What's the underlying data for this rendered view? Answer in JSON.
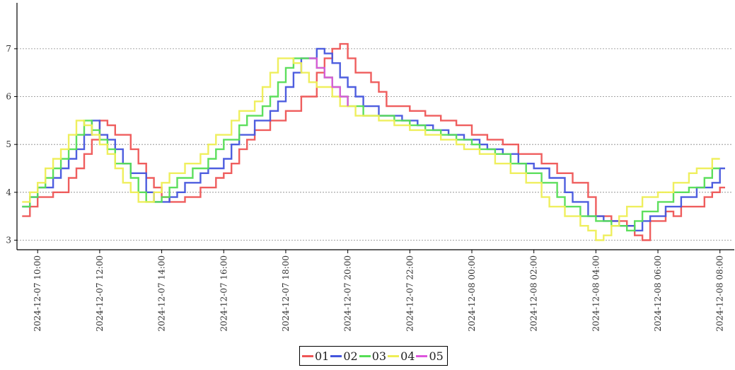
{
  "chart_data": {
    "type": "line",
    "step": true,
    "grid": {
      "horizontal": true,
      "style": "dotted"
    },
    "legend_position": "bottom-center",
    "x_ticks": [
      "2024-12-07 10:00",
      "2024-12-07 12:00",
      "2024-12-07 14:00",
      "2024-12-07 16:00",
      "2024-12-07 18:00",
      "2024-12-07 20:00",
      "2024-12-07 22:00",
      "2024-12-08 00:00",
      "2024-12-08 02:00",
      "2024-12-08 04:00",
      "2024-12-08 06:00",
      "2024-12-08 08:00"
    ],
    "xlim": [
      "2024-12-07 09:20",
      "2024-12-08 08:25"
    ],
    "ylim": [
      2.8,
      7.9
    ],
    "y_ticks": [
      3,
      4,
      5,
      6,
      7
    ],
    "series": [
      {
        "name": "01",
        "color": "#ee5555",
        "points": [
          [
            "2024-12-07 09:30",
            3.5
          ],
          [
            "2024-12-07 09:45",
            3.7
          ],
          [
            "2024-12-07 10:00",
            3.9
          ],
          [
            "2024-12-07 10:30",
            4.0
          ],
          [
            "2024-12-07 11:00",
            4.3
          ],
          [
            "2024-12-07 11:15",
            4.5
          ],
          [
            "2024-12-07 11:30",
            4.8
          ],
          [
            "2024-12-07 11:45",
            5.1
          ],
          [
            "2024-12-07 12:00",
            5.5
          ],
          [
            "2024-12-07 12:15",
            5.4
          ],
          [
            "2024-12-07 12:30",
            5.2
          ],
          [
            "2024-12-07 13:00",
            4.9
          ],
          [
            "2024-12-07 13:15",
            4.6
          ],
          [
            "2024-12-07 13:30",
            4.3
          ],
          [
            "2024-12-07 13:45",
            4.1
          ],
          [
            "2024-12-07 14:00",
            3.9
          ],
          [
            "2024-12-07 14:15",
            3.8
          ],
          [
            "2024-12-07 14:45",
            3.9
          ],
          [
            "2024-12-07 15:15",
            4.1
          ],
          [
            "2024-12-07 15:45",
            4.3
          ],
          [
            "2024-12-07 16:00",
            4.4
          ],
          [
            "2024-12-07 16:15",
            4.6
          ],
          [
            "2024-12-07 16:30",
            4.9
          ],
          [
            "2024-12-07 16:45",
            5.1
          ],
          [
            "2024-12-07 17:00",
            5.3
          ],
          [
            "2024-12-07 17:30",
            5.5
          ],
          [
            "2024-12-07 18:00",
            5.7
          ],
          [
            "2024-12-07 18:30",
            6.0
          ],
          [
            "2024-12-07 19:00",
            6.5
          ],
          [
            "2024-12-07 19:15",
            6.8
          ],
          [
            "2024-12-07 19:30",
            7.0
          ],
          [
            "2024-12-07 19:45",
            7.1
          ],
          [
            "2024-12-07 20:00",
            6.8
          ],
          [
            "2024-12-07 20:15",
            6.5
          ],
          [
            "2024-12-07 20:45",
            6.3
          ],
          [
            "2024-12-07 21:00",
            6.1
          ],
          [
            "2024-12-07 21:15",
            5.8
          ],
          [
            "2024-12-07 22:00",
            5.7
          ],
          [
            "2024-12-07 22:30",
            5.6
          ],
          [
            "2024-12-07 23:00",
            5.5
          ],
          [
            "2024-12-07 23:30",
            5.4
          ],
          [
            "2024-12-08 00:00",
            5.2
          ],
          [
            "2024-12-08 00:30",
            5.1
          ],
          [
            "2024-12-08 01:00",
            5.0
          ],
          [
            "2024-12-08 01:30",
            4.8
          ],
          [
            "2024-12-08 02:15",
            4.6
          ],
          [
            "2024-12-08 02:45",
            4.4
          ],
          [
            "2024-12-08 03:15",
            4.2
          ],
          [
            "2024-12-08 03:45",
            3.9
          ],
          [
            "2024-12-08 04:00",
            3.5
          ],
          [
            "2024-12-08 04:30",
            3.4
          ],
          [
            "2024-12-08 05:00",
            3.3
          ],
          [
            "2024-12-08 05:15",
            3.1
          ],
          [
            "2024-12-08 05:30",
            3.0
          ],
          [
            "2024-12-08 05:45",
            3.4
          ],
          [
            "2024-12-08 06:15",
            3.6
          ],
          [
            "2024-12-08 06:30",
            3.5
          ],
          [
            "2024-12-08 06:45",
            3.7
          ],
          [
            "2024-12-08 07:30",
            3.9
          ],
          [
            "2024-12-08 07:45",
            4.0
          ],
          [
            "2024-12-08 08:00",
            4.1
          ],
          [
            "2024-12-08 08:10",
            4.1
          ]
        ]
      },
      {
        "name": "02",
        "color": "#4455dd",
        "points": [
          [
            "2024-12-07 09:30",
            3.7
          ],
          [
            "2024-12-07 09:45",
            3.9
          ],
          [
            "2024-12-07 10:00",
            4.1
          ],
          [
            "2024-12-07 10:30",
            4.3
          ],
          [
            "2024-12-07 10:45",
            4.5
          ],
          [
            "2024-12-07 11:00",
            4.7
          ],
          [
            "2024-12-07 11:15",
            4.9
          ],
          [
            "2024-12-07 11:30",
            5.2
          ],
          [
            "2024-12-07 11:45",
            5.5
          ],
          [
            "2024-12-07 12:00",
            5.2
          ],
          [
            "2024-12-07 12:15",
            5.1
          ],
          [
            "2024-12-07 12:30",
            4.9
          ],
          [
            "2024-12-07 12:45",
            4.6
          ],
          [
            "2024-12-07 13:00",
            4.4
          ],
          [
            "2024-12-07 13:30",
            4.0
          ],
          [
            "2024-12-07 13:45",
            3.8
          ],
          [
            "2024-12-07 14:15",
            3.9
          ],
          [
            "2024-12-07 14:30",
            4.0
          ],
          [
            "2024-12-07 14:45",
            4.2
          ],
          [
            "2024-12-07 15:15",
            4.4
          ],
          [
            "2024-12-07 15:30",
            4.5
          ],
          [
            "2024-12-07 16:00",
            4.7
          ],
          [
            "2024-12-07 16:15",
            5.0
          ],
          [
            "2024-12-07 16:30",
            5.2
          ],
          [
            "2024-12-07 17:00",
            5.5
          ],
          [
            "2024-12-07 17:30",
            5.7
          ],
          [
            "2024-12-07 17:45",
            5.9
          ],
          [
            "2024-12-07 18:00",
            6.2
          ],
          [
            "2024-12-07 18:15",
            6.5
          ],
          [
            "2024-12-07 18:30",
            6.8
          ],
          [
            "2024-12-07 19:00",
            7.0
          ],
          [
            "2024-12-07 19:15",
            6.9
          ],
          [
            "2024-12-07 19:30",
            6.7
          ],
          [
            "2024-12-07 19:45",
            6.4
          ],
          [
            "2024-12-07 20:00",
            6.2
          ],
          [
            "2024-12-07 20:15",
            6.0
          ],
          [
            "2024-12-07 20:30",
            5.8
          ],
          [
            "2024-12-07 21:00",
            5.6
          ],
          [
            "2024-12-07 21:45",
            5.5
          ],
          [
            "2024-12-07 22:15",
            5.4
          ],
          [
            "2024-12-07 22:45",
            5.3
          ],
          [
            "2024-12-07 23:15",
            5.2
          ],
          [
            "2024-12-07 23:45",
            5.1
          ],
          [
            "2024-12-08 00:15",
            5.0
          ],
          [
            "2024-12-08 00:30",
            4.9
          ],
          [
            "2024-12-08 01:00",
            4.8
          ],
          [
            "2024-12-08 01:30",
            4.6
          ],
          [
            "2024-12-08 02:00",
            4.5
          ],
          [
            "2024-12-08 02:30",
            4.3
          ],
          [
            "2024-12-08 03:00",
            4.0
          ],
          [
            "2024-12-08 03:15",
            3.8
          ],
          [
            "2024-12-08 03:45",
            3.5
          ],
          [
            "2024-12-08 04:15",
            3.4
          ],
          [
            "2024-12-08 04:45",
            3.3
          ],
          [
            "2024-12-08 05:15",
            3.2
          ],
          [
            "2024-12-08 05:30",
            3.4
          ],
          [
            "2024-12-08 05:45",
            3.5
          ],
          [
            "2024-12-08 06:15",
            3.7
          ],
          [
            "2024-12-08 06:45",
            3.9
          ],
          [
            "2024-12-08 07:15",
            4.1
          ],
          [
            "2024-12-08 07:45",
            4.2
          ],
          [
            "2024-12-08 08:00",
            4.5
          ],
          [
            "2024-12-08 08:10",
            4.5
          ]
        ]
      },
      {
        "name": "03",
        "color": "#55dd55",
        "points": [
          [
            "2024-12-07 09:30",
            3.7
          ],
          [
            "2024-12-07 09:45",
            3.9
          ],
          [
            "2024-12-07 10:00",
            4.1
          ],
          [
            "2024-12-07 10:15",
            4.3
          ],
          [
            "2024-12-07 10:30",
            4.5
          ],
          [
            "2024-12-07 10:45",
            4.7
          ],
          [
            "2024-12-07 11:00",
            4.9
          ],
          [
            "2024-12-07 11:15",
            5.2
          ],
          [
            "2024-12-07 11:30",
            5.5
          ],
          [
            "2024-12-07 11:45",
            5.3
          ],
          [
            "2024-12-07 12:00",
            5.1
          ],
          [
            "2024-12-07 12:15",
            4.9
          ],
          [
            "2024-12-07 12:30",
            4.6
          ],
          [
            "2024-12-07 13:00",
            4.3
          ],
          [
            "2024-12-07 13:15",
            4.0
          ],
          [
            "2024-12-07 13:30",
            3.8
          ],
          [
            "2024-12-07 14:00",
            3.9
          ],
          [
            "2024-12-07 14:15",
            4.1
          ],
          [
            "2024-12-07 14:30",
            4.3
          ],
          [
            "2024-12-07 15:00",
            4.5
          ],
          [
            "2024-12-07 15:30",
            4.7
          ],
          [
            "2024-12-07 15:45",
            4.9
          ],
          [
            "2024-12-07 16:00",
            5.1
          ],
          [
            "2024-12-07 16:30",
            5.4
          ],
          [
            "2024-12-07 16:45",
            5.6
          ],
          [
            "2024-12-07 17:15",
            5.8
          ],
          [
            "2024-12-07 17:30",
            6.0
          ],
          [
            "2024-12-07 17:45",
            6.3
          ],
          [
            "2024-12-07 18:00",
            6.6
          ],
          [
            "2024-12-07 18:15",
            6.8
          ],
          [
            "2024-12-07 18:45",
            6.8
          ],
          [
            "2024-12-07 19:00",
            6.6
          ],
          [
            "2024-12-07 19:15",
            6.4
          ],
          [
            "2024-12-07 19:30",
            6.2
          ],
          [
            "2024-12-07 19:45",
            6.0
          ],
          [
            "2024-12-07 20:00",
            5.8
          ],
          [
            "2024-12-07 20:30",
            5.6
          ],
          [
            "2024-12-07 21:30",
            5.5
          ],
          [
            "2024-12-07 22:00",
            5.4
          ],
          [
            "2024-12-07 22:30",
            5.3
          ],
          [
            "2024-12-07 23:00",
            5.2
          ],
          [
            "2024-12-07 23:30",
            5.1
          ],
          [
            "2024-12-08 00:00",
            5.0
          ],
          [
            "2024-12-08 00:15",
            4.9
          ],
          [
            "2024-12-08 00:45",
            4.8
          ],
          [
            "2024-12-08 01:15",
            4.6
          ],
          [
            "2024-12-08 01:45",
            4.4
          ],
          [
            "2024-12-08 02:15",
            4.2
          ],
          [
            "2024-12-08 02:45",
            3.9
          ],
          [
            "2024-12-08 03:00",
            3.7
          ],
          [
            "2024-12-08 03:30",
            3.5
          ],
          [
            "2024-12-08 04:00",
            3.4
          ],
          [
            "2024-12-08 04:30",
            3.3
          ],
          [
            "2024-12-08 05:00",
            3.2
          ],
          [
            "2024-12-08 05:15",
            3.4
          ],
          [
            "2024-12-08 05:30",
            3.6
          ],
          [
            "2024-12-08 06:00",
            3.8
          ],
          [
            "2024-12-08 06:30",
            4.0
          ],
          [
            "2024-12-08 07:00",
            4.1
          ],
          [
            "2024-12-08 07:30",
            4.3
          ],
          [
            "2024-12-08 07:45",
            4.5
          ],
          [
            "2024-12-08 08:00",
            4.5
          ]
        ]
      },
      {
        "name": "04",
        "color": "#eeee55",
        "points": [
          [
            "2024-12-07 09:30",
            3.8
          ],
          [
            "2024-12-07 09:45",
            4.0
          ],
          [
            "2024-12-07 10:00",
            4.2
          ],
          [
            "2024-12-07 10:15",
            4.5
          ],
          [
            "2024-12-07 10:30",
            4.7
          ],
          [
            "2024-12-07 10:45",
            4.9
          ],
          [
            "2024-12-07 11:00",
            5.2
          ],
          [
            "2024-12-07 11:15",
            5.5
          ],
          [
            "2024-12-07 11:30",
            5.4
          ],
          [
            "2024-12-07 11:45",
            5.2
          ],
          [
            "2024-12-07 12:00",
            5.0
          ],
          [
            "2024-12-07 12:15",
            4.8
          ],
          [
            "2024-12-07 12:30",
            4.5
          ],
          [
            "2024-12-07 12:45",
            4.2
          ],
          [
            "2024-12-07 13:00",
            4.0
          ],
          [
            "2024-12-07 13:15",
            3.8
          ],
          [
            "2024-12-07 13:45",
            4.0
          ],
          [
            "2024-12-07 14:00",
            4.2
          ],
          [
            "2024-12-07 14:15",
            4.4
          ],
          [
            "2024-12-07 14:45",
            4.6
          ],
          [
            "2024-12-07 15:15",
            4.8
          ],
          [
            "2024-12-07 15:30",
            5.0
          ],
          [
            "2024-12-07 15:45",
            5.2
          ],
          [
            "2024-12-07 16:15",
            5.5
          ],
          [
            "2024-12-07 16:30",
            5.7
          ],
          [
            "2024-12-07 17:00",
            5.9
          ],
          [
            "2024-12-07 17:15",
            6.2
          ],
          [
            "2024-12-07 17:30",
            6.5
          ],
          [
            "2024-12-07 17:45",
            6.8
          ],
          [
            "2024-12-07 18:15",
            6.7
          ],
          [
            "2024-12-07 18:30",
            6.5
          ],
          [
            "2024-12-07 18:45",
            6.3
          ],
          [
            "2024-12-07 19:00",
            6.2
          ],
          [
            "2024-12-07 19:30",
            6.0
          ],
          [
            "2024-12-07 19:45",
            5.8
          ],
          [
            "2024-12-07 20:15",
            5.6
          ],
          [
            "2024-12-07 21:00",
            5.5
          ],
          [
            "2024-12-07 21:30",
            5.4
          ],
          [
            "2024-12-07 22:00",
            5.3
          ],
          [
            "2024-12-07 22:30",
            5.2
          ],
          [
            "2024-12-07 23:00",
            5.1
          ],
          [
            "2024-12-07 23:30",
            5.0
          ],
          [
            "2024-12-07 23:45",
            4.9
          ],
          [
            "2024-12-08 00:15",
            4.8
          ],
          [
            "2024-12-08 00:45",
            4.6
          ],
          [
            "2024-12-08 01:15",
            4.4
          ],
          [
            "2024-12-08 01:45",
            4.2
          ],
          [
            "2024-12-08 02:15",
            3.9
          ],
          [
            "2024-12-08 02:30",
            3.7
          ],
          [
            "2024-12-08 03:00",
            3.5
          ],
          [
            "2024-12-08 03:30",
            3.3
          ],
          [
            "2024-12-08 03:45",
            3.2
          ],
          [
            "2024-12-08 04:00",
            3.0
          ],
          [
            "2024-12-08 04:15",
            3.1
          ],
          [
            "2024-12-08 04:30",
            3.3
          ],
          [
            "2024-12-08 04:45",
            3.5
          ],
          [
            "2024-12-08 05:00",
            3.7
          ],
          [
            "2024-12-08 05:30",
            3.9
          ],
          [
            "2024-12-08 06:00",
            4.0
          ],
          [
            "2024-12-08 06:30",
            4.2
          ],
          [
            "2024-12-08 07:00",
            4.4
          ],
          [
            "2024-12-08 07:15",
            4.5
          ],
          [
            "2024-12-08 07:45",
            4.7
          ],
          [
            "2024-12-08 08:00",
            4.7
          ]
        ]
      },
      {
        "name": "05",
        "color": "#dd55dd",
        "points": [
          [
            "2024-12-07 18:45",
            6.8
          ],
          [
            "2024-12-07 19:00",
            6.6
          ],
          [
            "2024-12-07 19:15",
            6.4
          ],
          [
            "2024-12-07 19:30",
            6.2
          ],
          [
            "2024-12-07 19:45",
            6.0
          ],
          [
            "2024-12-07 20:00",
            5.8
          ]
        ]
      }
    ]
  }
}
